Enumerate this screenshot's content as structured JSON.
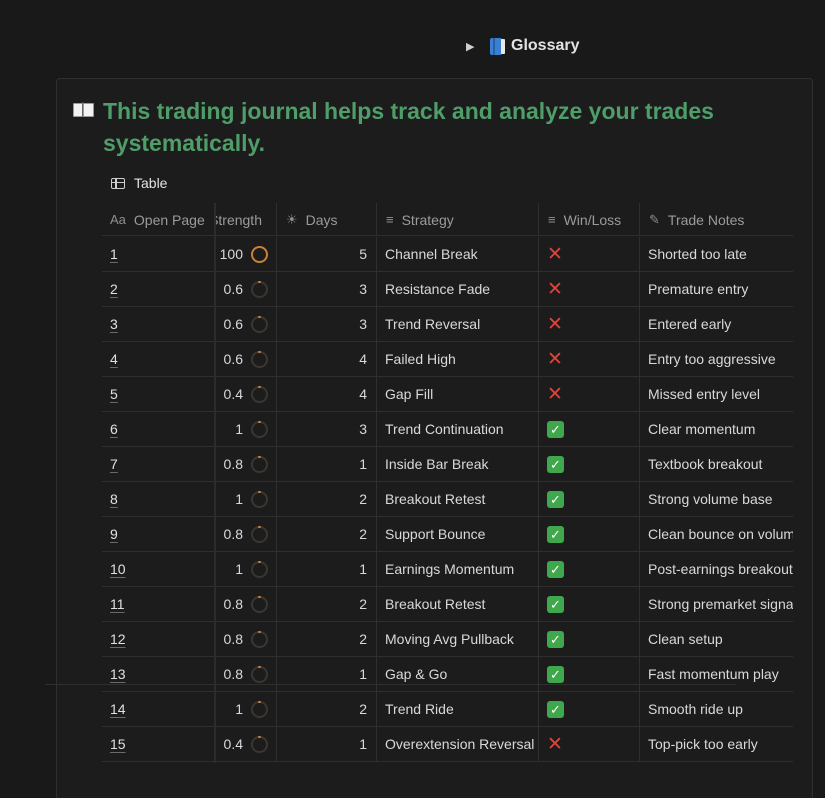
{
  "toggle": {
    "label": "Glossary",
    "icon": "blue-book-icon"
  },
  "callout": {
    "icon": "open-book-icon",
    "title": "This trading journal helps track and analyze your trades systematically."
  },
  "view": {
    "tab_label": "Table",
    "icon": "table-icon"
  },
  "columns": {
    "page": {
      "label": "Open Page",
      "icon": "Aa"
    },
    "strength": {
      "label": "Strength"
    },
    "days": {
      "label": "Days",
      "icon": "sun-icon"
    },
    "strategy": {
      "label": "Strategy",
      "icon": "text-lines-icon"
    },
    "win": {
      "label": "Win/Loss",
      "icon": "text-lines-icon"
    },
    "notes": {
      "label": "Trade Notes",
      "icon": "edit-icon"
    }
  },
  "colors": {
    "title": "#4f9d69",
    "loss": "#e0433a",
    "win": "#3fa84c",
    "ring": "#c9803a"
  },
  "rows": [
    {
      "page": "1",
      "strength": "100",
      "days": "5",
      "strategy": "Channel Break",
      "result": "loss",
      "notes": "Shorted too late"
    },
    {
      "page": "2",
      "strength": "0.6",
      "days": "3",
      "strategy": "Resistance Fade",
      "result": "loss",
      "notes": "Premature entry"
    },
    {
      "page": "3",
      "strength": "0.6",
      "days": "3",
      "strategy": "Trend Reversal",
      "result": "loss",
      "notes": "Entered early"
    },
    {
      "page": "4",
      "strength": "0.6",
      "days": "4",
      "strategy": "Failed High",
      "result": "loss",
      "notes": "Entry too aggressive"
    },
    {
      "page": "5",
      "strength": "0.4",
      "days": "4",
      "strategy": "Gap Fill",
      "result": "loss",
      "notes": "Missed entry level"
    },
    {
      "page": "6",
      "strength": "1",
      "days": "3",
      "strategy": "Trend Continuation",
      "result": "win",
      "notes": "Clear momentum"
    },
    {
      "page": "7",
      "strength": "0.8",
      "days": "1",
      "strategy": "Inside Bar Break",
      "result": "win",
      "notes": "Textbook breakout"
    },
    {
      "page": "8",
      "strength": "1",
      "days": "2",
      "strategy": "Breakout Retest",
      "result": "win",
      "notes": "Strong volume base"
    },
    {
      "page": "9",
      "strength": "0.8",
      "days": "2",
      "strategy": "Support Bounce",
      "result": "win",
      "notes": "Clean bounce on volume"
    },
    {
      "page": "10",
      "strength": "1",
      "days": "1",
      "strategy": "Earnings Momentum",
      "result": "win",
      "notes": "Post-earnings breakout"
    },
    {
      "page": "11",
      "strength": "0.8",
      "days": "2",
      "strategy": "Breakout Retest",
      "result": "win",
      "notes": "Strong premarket signal"
    },
    {
      "page": "12",
      "strength": "0.8",
      "days": "2",
      "strategy": "Moving Avg Pullback",
      "result": "win",
      "notes": "Clean setup"
    },
    {
      "page": "13",
      "strength": "0.8",
      "days": "1",
      "strategy": "Gap & Go",
      "result": "win",
      "notes": "Fast momentum play"
    },
    {
      "page": "14",
      "strength": "1",
      "days": "2",
      "strategy": "Trend Ride",
      "result": "win",
      "notes": "Smooth ride up"
    },
    {
      "page": "15",
      "strength": "0.4",
      "days": "1",
      "strategy": "Overextension Reversal",
      "result": "loss",
      "notes": "Top-pick too early"
    }
  ]
}
